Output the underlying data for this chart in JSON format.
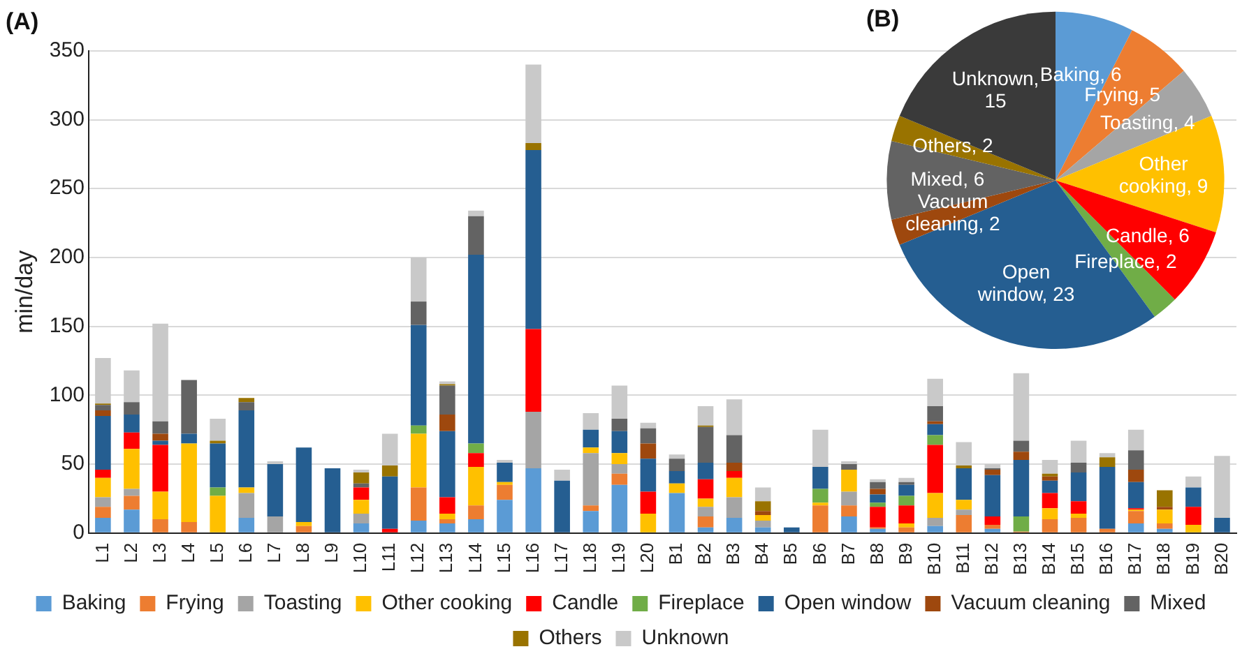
{
  "chart_data": [
    {
      "type": "bar",
      "title": "(A)",
      "ylabel": "min/day",
      "stacked": true,
      "grid": "y",
      "legend": "bottom",
      "ylim": [
        0,
        350
      ],
      "yticks": [
        0,
        50,
        100,
        150,
        200,
        250,
        300,
        350
      ],
      "categories": [
        "L1",
        "L2",
        "L3",
        "L4",
        "L5",
        "L6",
        "L7",
        "L8",
        "L9",
        "L10",
        "L11",
        "L12",
        "L13",
        "L14",
        "L15",
        "L16",
        "L17",
        "L18",
        "L19",
        "L20",
        "B1",
        "B2",
        "B3",
        "B4",
        "B5",
        "B6",
        "B7",
        "B8",
        "B9",
        "B10",
        "B11",
        "B12",
        "B13",
        "B14",
        "B15",
        "B16",
        "B17",
        "B18",
        "B19",
        "B20"
      ],
      "series": [
        {
          "name": "Baking",
          "color": "#5b9bd5",
          "values": [
            11,
            17,
            0,
            0,
            0,
            11,
            0,
            0,
            0,
            7,
            0,
            9,
            7,
            10,
            24,
            47,
            0,
            16,
            35,
            0,
            29,
            4,
            11,
            4,
            0,
            0,
            12,
            3,
            0,
            5,
            0,
            3,
            0,
            0,
            0,
            0,
            7,
            3,
            0,
            0
          ]
        },
        {
          "name": "Frying",
          "color": "#ed7d31",
          "values": [
            8,
            10,
            10,
            8,
            0,
            0,
            0,
            5,
            0,
            0,
            0,
            24,
            3,
            10,
            11,
            0,
            0,
            4,
            8,
            0,
            0,
            8,
            0,
            0,
            0,
            20,
            8,
            1,
            4,
            0,
            13,
            3,
            1,
            10,
            11,
            3,
            9,
            4,
            0,
            0
          ]
        },
        {
          "name": "Toasting",
          "color": "#a5a5a5",
          "values": [
            7,
            5,
            0,
            0,
            0,
            18,
            12,
            0,
            0,
            7,
            0,
            0,
            0,
            0,
            0,
            41,
            0,
            38,
            7,
            0,
            0,
            7,
            15,
            5,
            0,
            0,
            10,
            0,
            0,
            6,
            4,
            0,
            0,
            0,
            0,
            0,
            0,
            0,
            0,
            0
          ]
        },
        {
          "name": "Other cooking",
          "color": "#ffc000",
          "values": [
            14,
            29,
            20,
            57,
            27,
            4,
            0,
            3,
            0,
            10,
            0,
            39,
            4,
            28,
            2,
            0,
            0,
            4,
            8,
            14,
            7,
            6,
            14,
            4,
            0,
            2,
            16,
            0,
            3,
            18,
            7,
            0,
            0,
            8,
            3,
            0,
            1,
            10,
            6,
            0
          ]
        },
        {
          "name": "Candle",
          "color": "#ff0000",
          "values": [
            6,
            12,
            34,
            0,
            0,
            0,
            0,
            0,
            0,
            9,
            3,
            0,
            12,
            10,
            0,
            60,
            0,
            0,
            0,
            16,
            0,
            14,
            5,
            0,
            0,
            0,
            0,
            15,
            13,
            35,
            0,
            6,
            0,
            11,
            9,
            0,
            1,
            0,
            13,
            0
          ]
        },
        {
          "name": "Fireplace",
          "color": "#70ad47",
          "values": [
            0,
            0,
            0,
            0,
            6,
            0,
            0,
            0,
            0,
            0,
            0,
            6,
            0,
            7,
            0,
            0,
            0,
            0,
            0,
            0,
            0,
            0,
            0,
            0,
            0,
            10,
            0,
            3,
            7,
            7,
            0,
            0,
            11,
            0,
            0,
            0,
            0,
            0,
            0,
            0
          ]
        },
        {
          "name": "Open window",
          "color": "#255e91",
          "values": [
            39,
            13,
            3,
            7,
            32,
            56,
            38,
            54,
            47,
            0,
            38,
            73,
            48,
            137,
            14,
            130,
            38,
            13,
            16,
            24,
            9,
            12,
            0,
            0,
            4,
            16,
            0,
            6,
            8,
            8,
            23,
            30,
            41,
            9,
            21,
            45,
            19,
            0,
            14,
            11
          ]
        },
        {
          "name": "Vacuum cleaning",
          "color": "#9e480e",
          "values": [
            4,
            0,
            5,
            0,
            0,
            0,
            0,
            0,
            0,
            0,
            0,
            0,
            12,
            0,
            0,
            0,
            0,
            0,
            0,
            11,
            0,
            0,
            6,
            3,
            0,
            0,
            0,
            4,
            0,
            2,
            0,
            4,
            6,
            3,
            0,
            0,
            9,
            2,
            0,
            0
          ]
        },
        {
          "name": "Mixed",
          "color": "#636363",
          "values": [
            4,
            9,
            9,
            39,
            0,
            6,
            0,
            0,
            0,
            3,
            0,
            17,
            21,
            28,
            0,
            0,
            0,
            0,
            9,
            11,
            9,
            26,
            20,
            0,
            0,
            0,
            4,
            5,
            2,
            11,
            0,
            1,
            8,
            0,
            7,
            0,
            14,
            0,
            0,
            0
          ]
        },
        {
          "name": "Others",
          "color": "#997300",
          "values": [
            1,
            0,
            0,
            0,
            2,
            3,
            0,
            0,
            0,
            8,
            8,
            0,
            1,
            0,
            0,
            5,
            0,
            0,
            0,
            0,
            0,
            1,
            0,
            7,
            0,
            0,
            0,
            0,
            0,
            0,
            2,
            0,
            0,
            2,
            0,
            7,
            0,
            12,
            0,
            0
          ]
        },
        {
          "name": "Unknown",
          "color": "#c9c9c9",
          "values": [
            33,
            23,
            71,
            0,
            16,
            0,
            2,
            0,
            0,
            2,
            23,
            32,
            2,
            4,
            2,
            57,
            8,
            12,
            24,
            4,
            3,
            14,
            26,
            10,
            0,
            27,
            2,
            2,
            3,
            20,
            17,
            3,
            49,
            10,
            16,
            3,
            15,
            0,
            8,
            45
          ]
        }
      ]
    },
    {
      "type": "pie",
      "title": "(B)",
      "categories": [
        "Baking, 6",
        "Frying, 5",
        "Toasting, 4",
        "Other cooking, 9",
        "Candle, 6",
        "Fireplace, 2",
        "Open window, 23",
        "Vacuum cleaning, 2",
        "Mixed, 6",
        "Others, 2",
        "Unknown, 15"
      ],
      "values": [
        6,
        5,
        4,
        9,
        6,
        2,
        23,
        2,
        6,
        2,
        15
      ],
      "colors": [
        "#5b9bd5",
        "#ed7d31",
        "#a5a5a5",
        "#ffc000",
        "#ff0000",
        "#70ad47",
        "#255e91",
        "#9e480e",
        "#636363",
        "#997300",
        "#3a3a3a"
      ]
    }
  ]
}
